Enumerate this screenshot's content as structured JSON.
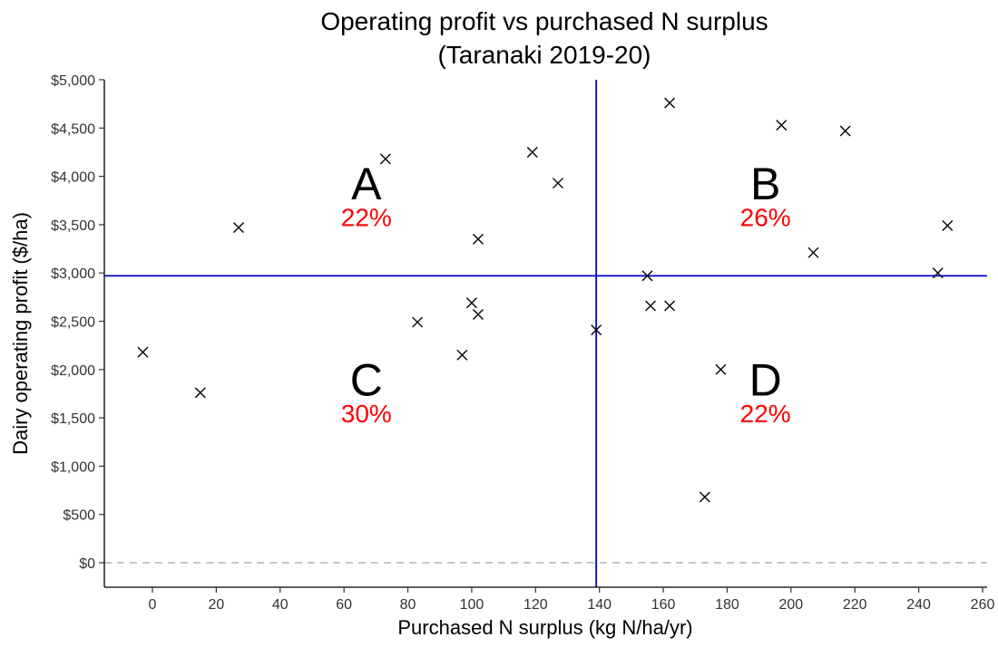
{
  "chart_data": {
    "type": "scatter",
    "title": "Operating profit vs purchased N surplus",
    "subtitle": "(Taranaki 2019-20)",
    "xlabel": "Purchased N surplus (kg N/ha/yr)",
    "ylabel": "Dairy operating profit ($/ha)",
    "xlim": [
      -15,
      262
    ],
    "ylim": [
      -250,
      5050
    ],
    "x_ticks": [
      0,
      20,
      40,
      60,
      80,
      100,
      120,
      140,
      160,
      180,
      200,
      220,
      240,
      260
    ],
    "x_tick_labels": [
      "0",
      "20",
      "40",
      "60",
      "80",
      "100",
      "120",
      "140",
      "160",
      "180",
      "200",
      "220",
      "240",
      "260"
    ],
    "y_ticks": [
      0,
      500,
      1000,
      1500,
      2000,
      2500,
      3000,
      3500,
      4000,
      4500,
      5000
    ],
    "y_tick_labels": [
      "$0",
      "$500",
      "$1,000",
      "$1,500",
      "$2,000",
      "$2,500",
      "$3,000",
      "$3,500",
      "$4,000",
      "$4,500",
      "$5,000"
    ],
    "grid": false,
    "marker": "x",
    "points": [
      {
        "x": -3,
        "y": 2180
      },
      {
        "x": 15,
        "y": 1760
      },
      {
        "x": 27,
        "y": 3470
      },
      {
        "x": 73,
        "y": 4180
      },
      {
        "x": 83,
        "y": 2490
      },
      {
        "x": 97,
        "y": 2150
      },
      {
        "x": 100,
        "y": 2690
      },
      {
        "x": 102,
        "y": 2570
      },
      {
        "x": 102,
        "y": 3350
      },
      {
        "x": 119,
        "y": 4250
      },
      {
        "x": 127,
        "y": 3930
      },
      {
        "x": 139,
        "y": 2410
      },
      {
        "x": 155,
        "y": 2970
      },
      {
        "x": 156,
        "y": 2660
      },
      {
        "x": 162,
        "y": 2660
      },
      {
        "x": 162,
        "y": 4760
      },
      {
        "x": 173,
        "y": 680
      },
      {
        "x": 178,
        "y": 2000
      },
      {
        "x": 197,
        "y": 4530
      },
      {
        "x": 207,
        "y": 3210
      },
      {
        "x": 217,
        "y": 4470
      },
      {
        "x": 246,
        "y": 3000
      },
      {
        "x": 249,
        "y": 3490
      }
    ],
    "vline": {
      "x": 139,
      "color": "#0000cc"
    },
    "hline": {
      "y": 2970,
      "color": "#0000cc"
    },
    "zero_line": {
      "y": 0,
      "color": "#b3b3b3",
      "style": "dashed"
    },
    "quadrants": [
      {
        "letter": "A",
        "percent": "22%",
        "x": 67,
        "y": 3930,
        "pct_y": 3580
      },
      {
        "letter": "B",
        "percent": "26%",
        "x": 192,
        "y": 3930,
        "pct_y": 3580
      },
      {
        "letter": "C",
        "percent": "30%",
        "x": 67,
        "y": 1900,
        "pct_y": 1550
      },
      {
        "letter": "D",
        "percent": "22%",
        "x": 192,
        "y": 1900,
        "pct_y": 1550
      }
    ],
    "quadrant_percent_color": "#ff0000"
  }
}
